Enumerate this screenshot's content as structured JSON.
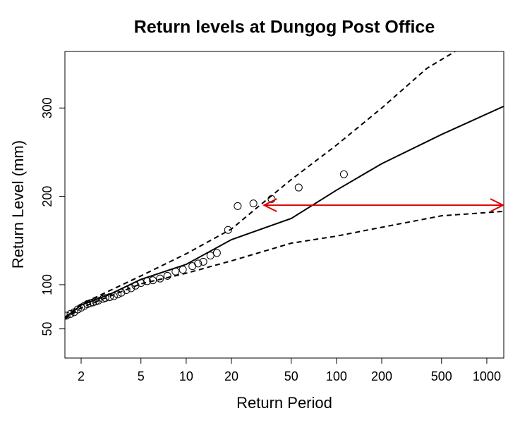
{
  "chart_data": {
    "type": "line",
    "title": "Return levels at Dungog Post Office",
    "x_label": "Return Period",
    "y_label": "Return Level (mm)",
    "xscale": "log",
    "xlim": [
      1.56,
      1297
    ],
    "ylim": [
      17,
      364
    ],
    "xticks": [
      2,
      5,
      10,
      20,
      50,
      100,
      200,
      500,
      1000
    ],
    "yticks": [
      50,
      100,
      200,
      300
    ],
    "series": [
      {
        "color": "#000000",
        "dash": "solid",
        "x": [
          1.56,
          2,
          3,
          5,
          10,
          20,
          50,
          100,
          200,
          500,
          1297
        ],
        "values": [
          62,
          77,
          88,
          106,
          123,
          151,
          175,
          207,
          237,
          270,
          302
        ]
      },
      {
        "color": "#000000",
        "dash": "dashed",
        "x": [
          1.56,
          2,
          5,
          10,
          20,
          30,
          50,
          100,
          200,
          400,
          616
        ],
        "values": [
          63,
          78,
          110,
          135,
          163,
          188,
          219,
          258,
          300,
          345,
          364
        ]
      },
      {
        "color": "#000000",
        "dash": "dashed",
        "x": [
          1.56,
          2,
          5,
          10,
          20,
          50,
          100,
          200,
          500,
          1297
        ],
        "values": [
          61,
          74,
          101,
          113,
          127,
          147,
          155,
          165,
          178,
          183
        ]
      }
    ],
    "points": {
      "color": "#000000",
      "x": [
        1.6,
        1.7,
        1.8,
        1.9,
        2.0,
        2.1,
        2.2,
        2.3,
        2.4,
        2.5,
        2.6,
        2.8,
        2.9,
        3.1,
        3.3,
        3.5,
        3.7,
        4.0,
        4.3,
        4.6,
        5.0,
        5.5,
        6.0,
        6.7,
        7.5,
        8.5,
        9.5,
        11,
        12,
        13,
        14.5,
        16,
        19,
        22,
        28,
        37,
        56,
        112
      ],
      "values": [
        65,
        67,
        69,
        72,
        74,
        76,
        78,
        79,
        80,
        81,
        82,
        84,
        85,
        86,
        87,
        89,
        91,
        94,
        96,
        99,
        102,
        104,
        105,
        107,
        110,
        115,
        117,
        121,
        124,
        126,
        133,
        136,
        162,
        189,
        192,
        197,
        210,
        225
      ]
    },
    "arrow": {
      "x": [
        33,
        1300
      ],
      "y": 190,
      "color": "#e00000"
    }
  }
}
